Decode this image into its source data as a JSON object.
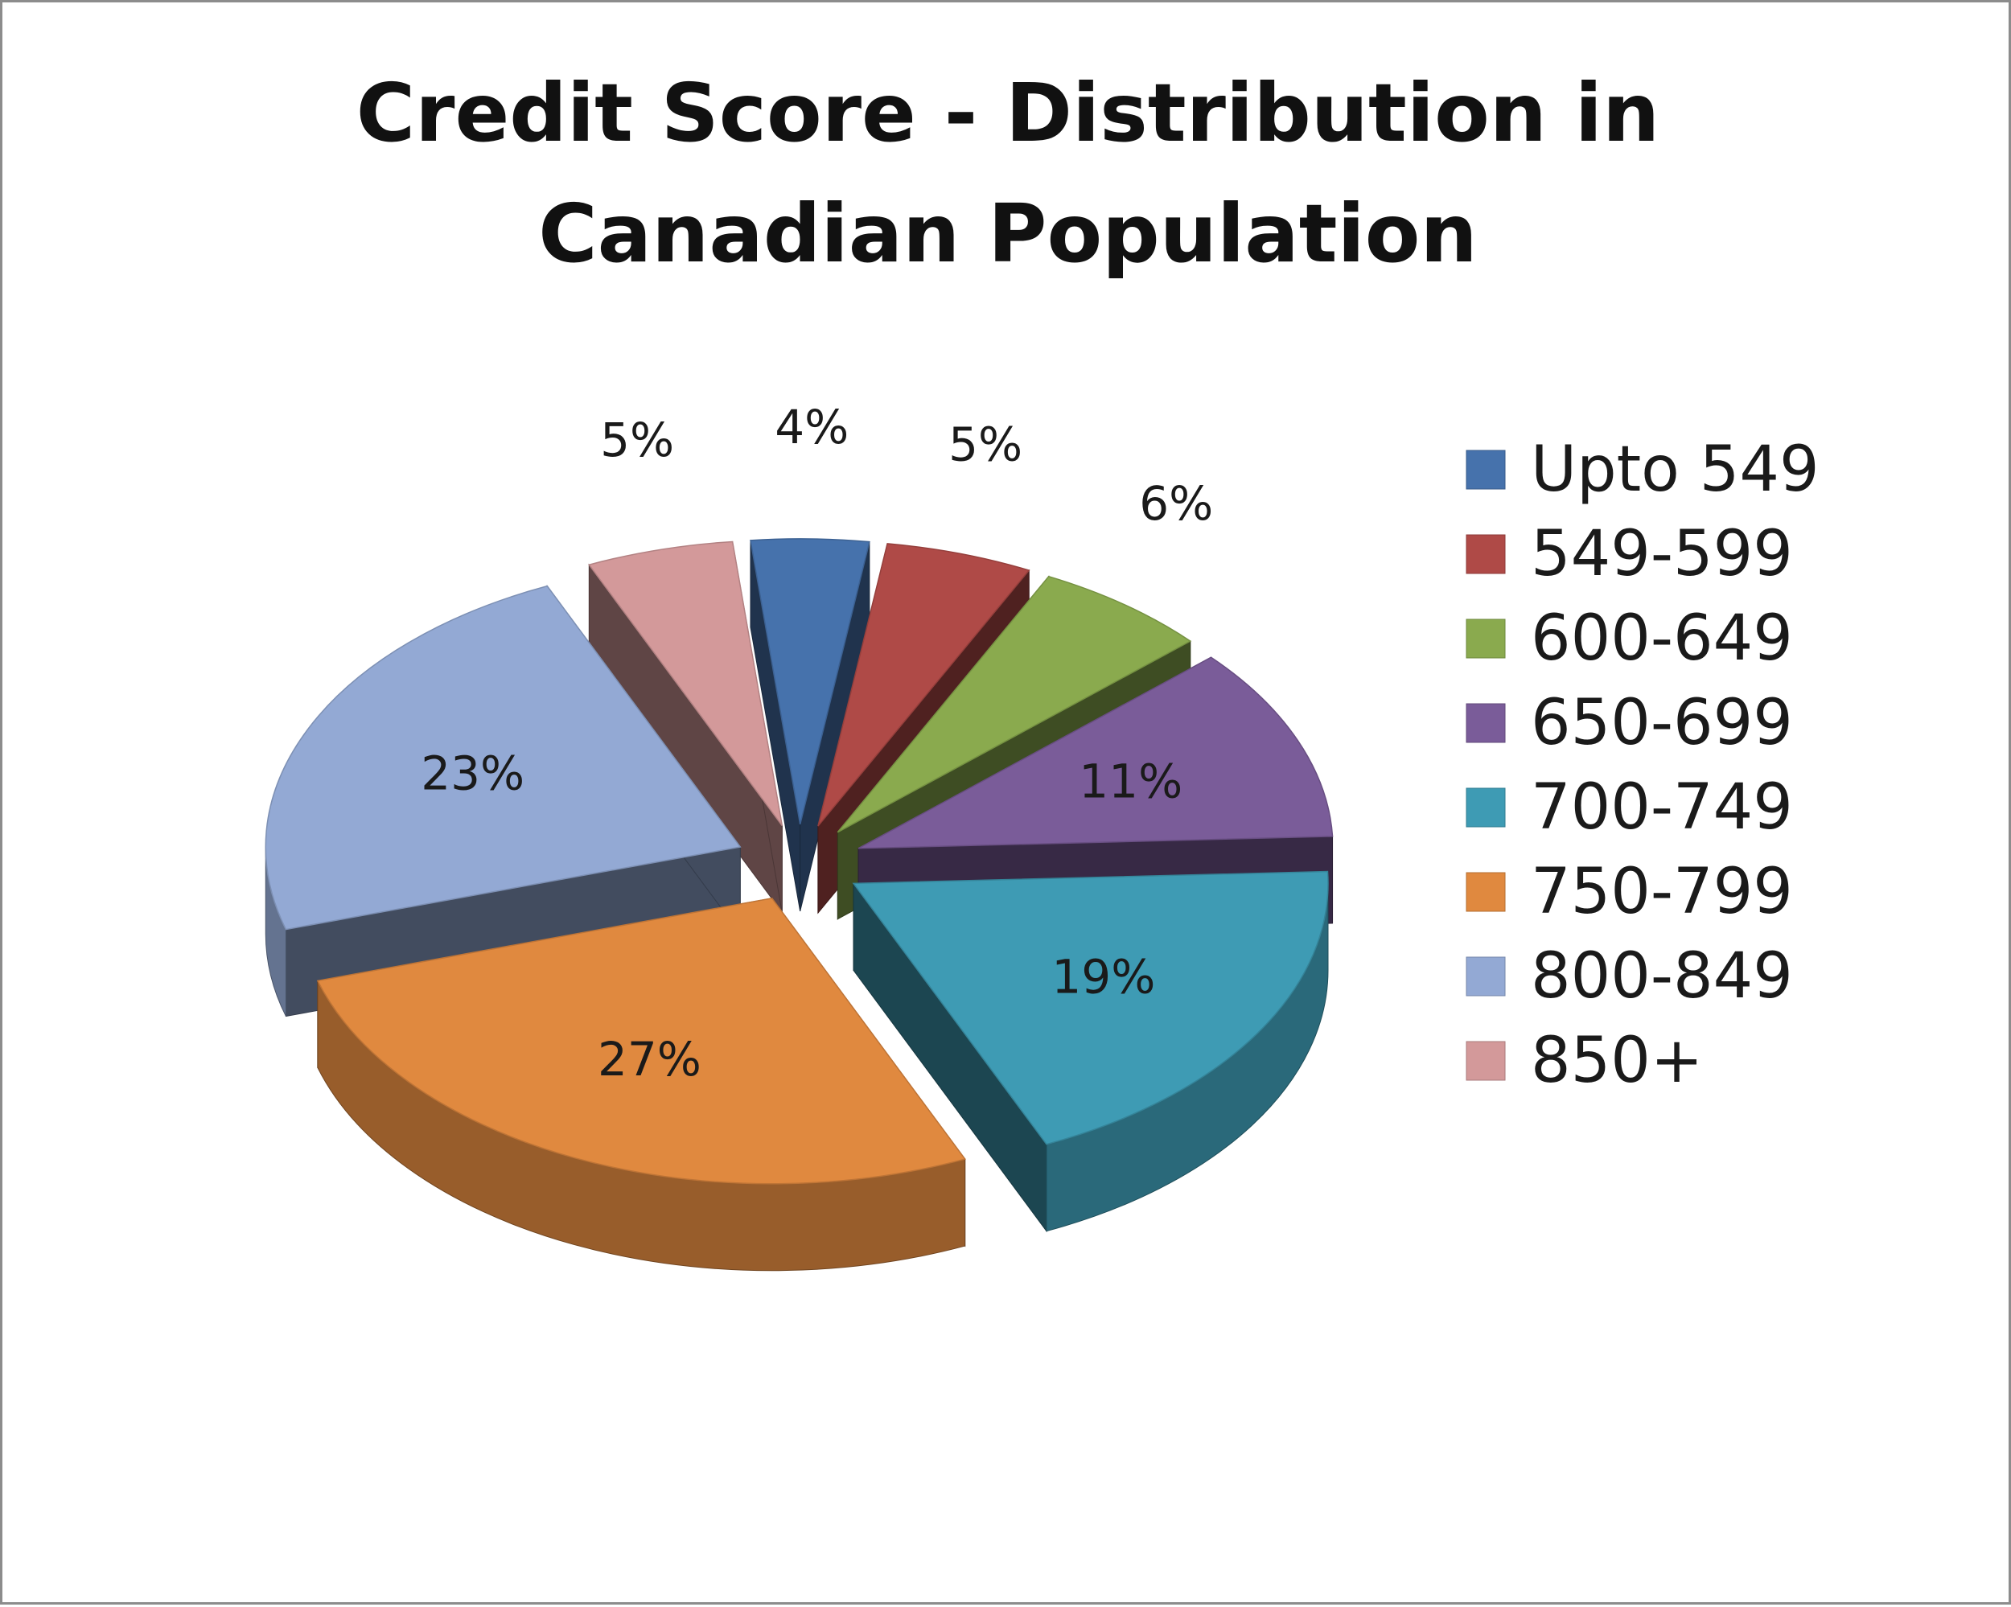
{
  "chart_data": {
    "type": "pie",
    "title": "Credit Score - Distribution  in Canadian  Population",
    "title_lines": [
      "Credit Score - Distribution  in",
      "Canadian  Population"
    ],
    "categories": [
      "Upto 549",
      "549-599",
      "600-649",
      "650-699",
      "700-749",
      "750-799",
      "800-849",
      "850+"
    ],
    "values": [
      4,
      5,
      6,
      11,
      19,
      27,
      23,
      5
    ],
    "data_labels": [
      "4%",
      "5%",
      "6%",
      "11%",
      "19%",
      "27%",
      "23%",
      "5%"
    ],
    "colors": [
      "#4672AC",
      "#AF4A47",
      "#8AAA4E",
      "#7A5C99",
      "#3E9BB4",
      "#E0893F",
      "#93A9D4",
      "#D3999A"
    ],
    "legend_position": "right",
    "style": "3d exploded pie"
  }
}
